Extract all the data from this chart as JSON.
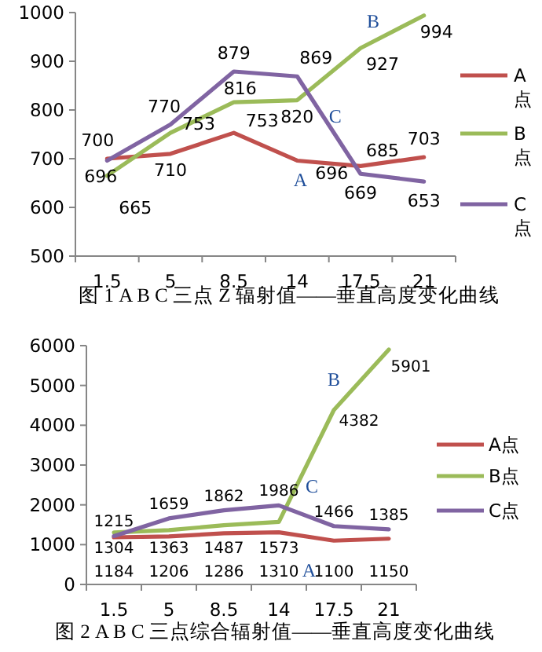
{
  "chart_data": [
    {
      "type": "line",
      "title": "图 1 A B C 三点 Z 辐射值——垂直高度变化曲线",
      "categories": [
        "1.5",
        "5",
        "8.5",
        "14",
        "17.5",
        "21"
      ],
      "ylim": [
        500,
        1000
      ],
      "yticks": [
        500,
        600,
        700,
        800,
        900,
        1000
      ],
      "legend": "right",
      "data_labels": true,
      "series": [
        {
          "name": "A点",
          "color": "#c0504d",
          "values": [
            700,
            710,
            753,
            696,
            685,
            703
          ]
        },
        {
          "name": "B点",
          "color": "#9bbb59",
          "values": [
            665,
            753,
            816,
            820,
            927,
            994
          ]
        },
        {
          "name": "C点",
          "color": "#8064a2",
          "values": [
            696,
            770,
            879,
            869,
            669,
            653
          ]
        }
      ],
      "annotations": [
        "A",
        "B",
        "C"
      ]
    },
    {
      "type": "line",
      "title": "图 2 A B C 三点综合辐射值——垂直高度变化曲线",
      "categories": [
        "1.5",
        "5",
        "8.5",
        "14",
        "17.5",
        "21"
      ],
      "ylim": [
        0,
        6000
      ],
      "yticks": [
        0,
        1000,
        2000,
        3000,
        4000,
        5000,
        6000
      ],
      "legend": "right",
      "data_labels": true,
      "series": [
        {
          "name": "A点",
          "color": "#c0504d",
          "values": [
            1184,
            1206,
            1286,
            1310,
            1100,
            1150
          ]
        },
        {
          "name": "B点",
          "color": "#9bbb59",
          "values": [
            1304,
            1363,
            1487,
            1573,
            4382,
            5901
          ]
        },
        {
          "name": "C点",
          "color": "#8064a2",
          "values": [
            1215,
            1659,
            1862,
            1986,
            1466,
            1385
          ]
        }
      ],
      "annotations": [
        "A",
        "B",
        "C"
      ]
    }
  ]
}
